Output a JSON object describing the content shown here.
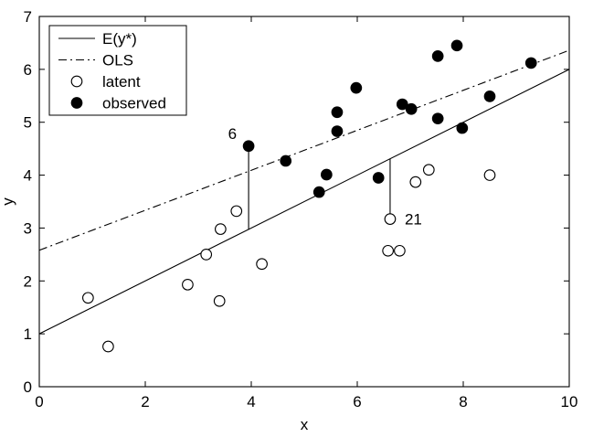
{
  "chart_data": {
    "type": "scatter",
    "xlabel": "x",
    "ylabel": "y",
    "xlim": [
      0,
      10
    ],
    "ylim": [
      0,
      7
    ],
    "xticks": [
      0,
      2,
      4,
      6,
      8,
      10
    ],
    "yticks": [
      0,
      1,
      2,
      3,
      4,
      5,
      6,
      7
    ],
    "grid": false,
    "legend_position": "top-left",
    "series": [
      {
        "name": "E(y*)",
        "kind": "line",
        "style": "solid",
        "intercept": 1.0,
        "slope": 0.5
      },
      {
        "name": "OLS",
        "kind": "line",
        "style": "dash-dot",
        "intercept": 2.58,
        "slope": 0.378
      },
      {
        "name": "latent",
        "kind": "scatter",
        "marker": "open-circle",
        "points": [
          [
            0.92,
            1.68
          ],
          [
            1.3,
            0.76
          ],
          [
            2.8,
            1.93
          ],
          [
            3.15,
            2.5
          ],
          [
            3.4,
            1.62
          ],
          [
            3.42,
            2.98
          ],
          [
            3.72,
            3.32
          ],
          [
            4.2,
            2.32
          ],
          [
            6.58,
            2.57
          ],
          [
            6.62,
            3.17
          ],
          [
            6.8,
            2.57
          ],
          [
            7.1,
            3.87
          ],
          [
            7.35,
            4.1
          ],
          [
            8.5,
            4.0
          ]
        ]
      },
      {
        "name": "observed",
        "kind": "scatter",
        "marker": "filled-circle",
        "points": [
          [
            3.95,
            4.55
          ],
          [
            4.65,
            4.27
          ],
          [
            5.28,
            3.68
          ],
          [
            5.42,
            4.01
          ],
          [
            5.62,
            5.19
          ],
          [
            5.62,
            4.83
          ],
          [
            5.98,
            5.65
          ],
          [
            6.4,
            3.95
          ],
          [
            6.85,
            5.34
          ],
          [
            7.02,
            5.25
          ],
          [
            7.52,
            5.07
          ],
          [
            7.52,
            6.25
          ],
          [
            7.88,
            6.45
          ],
          [
            7.98,
            4.89
          ],
          [
            8.5,
            5.49
          ],
          [
            9.28,
            6.12
          ]
        ]
      }
    ],
    "annotations": [
      {
        "label": "6",
        "x": 3.95,
        "y_top": 4.55,
        "y_bottom": 2.97
      },
      {
        "label": "21",
        "x": 6.62,
        "y_top": 4.31,
        "y_bottom": 3.17
      }
    ]
  }
}
